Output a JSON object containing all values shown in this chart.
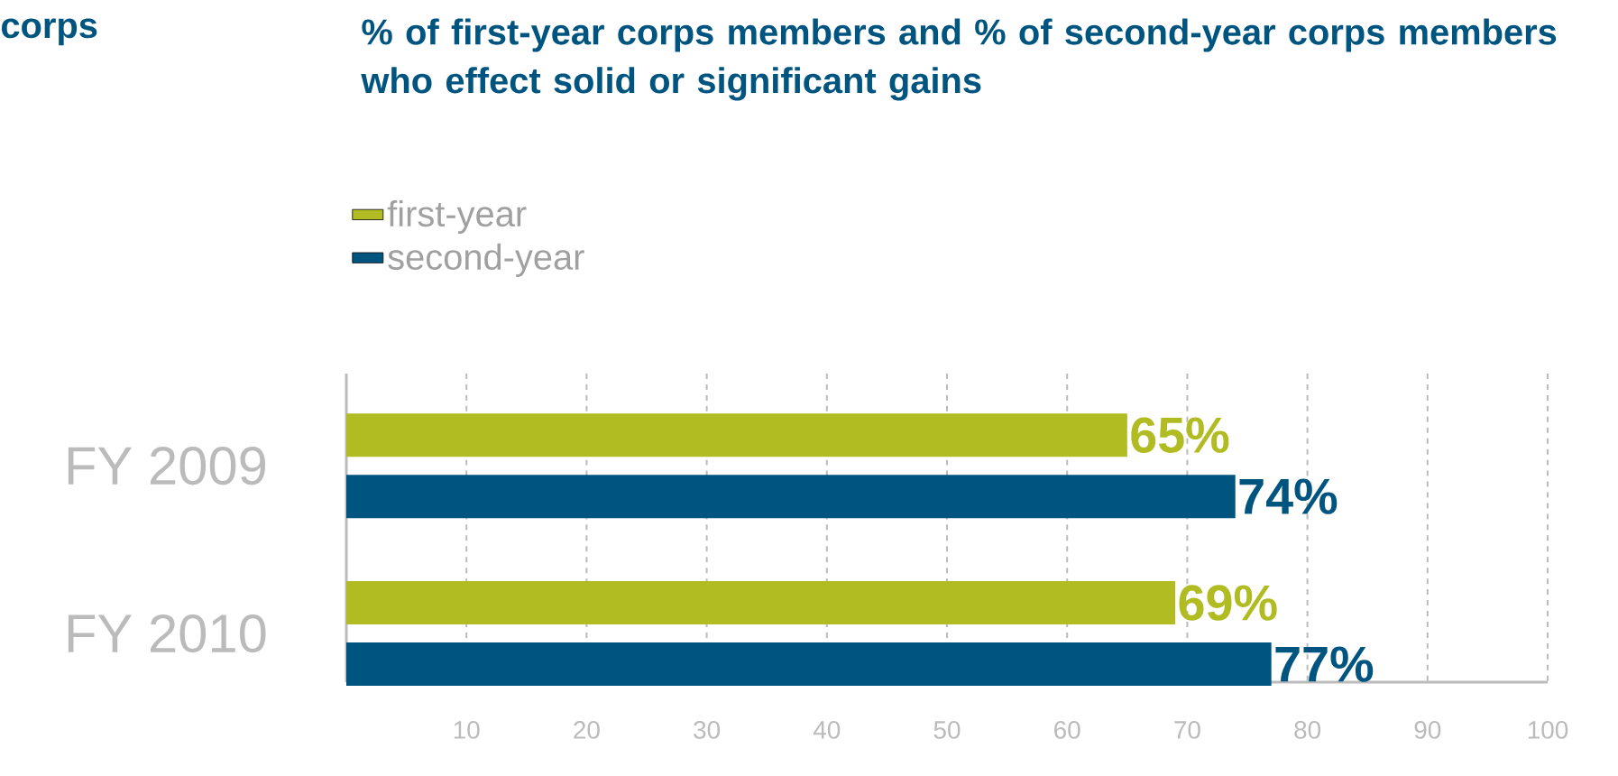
{
  "chart_data": {
    "type": "bar",
    "orientation": "horizontal",
    "title": "% of first-year corps members and % of second-year corps members who effect solid or significant gains",
    "annotations": [
      "corps"
    ],
    "categories": [
      "FY 2009",
      "FY 2010"
    ],
    "series": [
      {
        "name": "first-year",
        "color": "#b0bc22",
        "values": [
          65,
          69
        ],
        "value_labels": [
          "65%",
          "69%"
        ]
      },
      {
        "name": "second-year",
        "color": "#005580",
        "values": [
          74,
          77
        ],
        "value_labels": [
          "74%",
          "77%"
        ]
      }
    ],
    "xlim": [
      0,
      100
    ],
    "xticks": [
      10,
      20,
      30,
      40,
      50,
      60,
      70,
      80,
      90,
      100
    ],
    "grid": "x",
    "legend": "top left"
  }
}
